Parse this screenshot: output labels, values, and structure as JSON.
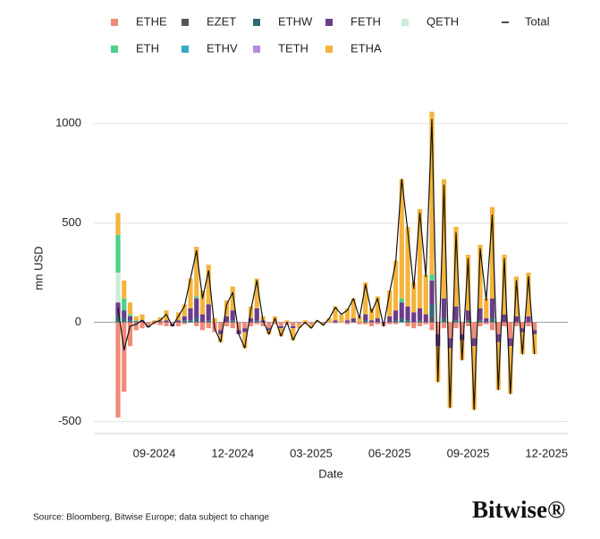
{
  "chart_data": {
    "type": "stacked_bar_line",
    "x_label": "Date",
    "y_label": "mn USD",
    "source": "Source: Bloomberg, Bitwise Europe; data subject to change",
    "logo": "Bitwise®",
    "categories": [
      null,
      null,
      null,
      null,
      null,
      null,
      "09-2024",
      null,
      null,
      null,
      null,
      null,
      null,
      null,
      null,
      null,
      null,
      null,
      null,
      "12-2024",
      null,
      null,
      null,
      null,
      null,
      null,
      null,
      null,
      null,
      null,
      null,
      null,
      "03-2025",
      null,
      null,
      null,
      null,
      null,
      null,
      null,
      null,
      null,
      null,
      null,
      null,
      "06-2025",
      null,
      null,
      null,
      null,
      null,
      null,
      null,
      null,
      null,
      null,
      null,
      null,
      "09-2025",
      null,
      null,
      null,
      null,
      null,
      null,
      null,
      null,
      null,
      null,
      null,
      null,
      "12-2025"
    ],
    "series": [
      {
        "name": "ETHE",
        "color": "#f08a78",
        "values": [
          -480,
          -350,
          -120,
          -40,
          -30,
          -20,
          -10,
          -15,
          -20,
          -10,
          -20,
          -10,
          0,
          -20,
          -40,
          -30,
          -50,
          -40,
          -20,
          -30,
          -40,
          -30,
          -20,
          -10,
          -20,
          -30,
          -10,
          -20,
          -10,
          -20,
          -10,
          -10,
          -10,
          0,
          -5,
          0,
          -5,
          0,
          -10,
          0,
          -10,
          -10,
          -20,
          -10,
          -20,
          -10,
          -10,
          0,
          -20,
          -30,
          -20,
          -10,
          -40,
          -60,
          -30,
          -80,
          -30,
          -60,
          -20,
          -80,
          -20,
          -10,
          -40,
          -60,
          -20,
          -80,
          -20,
          -30,
          -20,
          -40,
          null,
          null
        ]
      },
      {
        "name": "EZET",
        "color": "#555555",
        "values": [
          0,
          0,
          0,
          0,
          0,
          0,
          0,
          0,
          0,
          0,
          0,
          0,
          0,
          0,
          0,
          0,
          0,
          0,
          0,
          0,
          0,
          0,
          0,
          0,
          0,
          0,
          0,
          0,
          0,
          0,
          0,
          0,
          0,
          0,
          0,
          0,
          0,
          0,
          0,
          0,
          0,
          0,
          0,
          0,
          0,
          0,
          0,
          0,
          0,
          0,
          0,
          0,
          30,
          0,
          0,
          0,
          0,
          0,
          0,
          0,
          0,
          0,
          0,
          0,
          0,
          0,
          0,
          0,
          0,
          0,
          null,
          null
        ]
      },
      {
        "name": "ETHW",
        "color": "#2f6b73",
        "values": [
          30,
          20,
          10,
          0,
          0,
          0,
          0,
          0,
          0,
          0,
          0,
          10,
          10,
          20,
          0,
          10,
          0,
          0,
          0,
          10,
          0,
          0,
          0,
          10,
          0,
          0,
          0,
          0,
          0,
          0,
          0,
          0,
          0,
          0,
          0,
          0,
          0,
          0,
          0,
          0,
          0,
          10,
          0,
          0,
          0,
          0,
          10,
          20,
          10,
          0,
          10,
          0,
          60,
          0,
          20,
          0,
          10,
          0,
          10,
          0,
          10,
          0,
          20,
          0,
          0,
          0,
          0,
          0,
          0,
          0,
          null,
          null
        ]
      },
      {
        "name": "FETH",
        "color": "#6a3d8a",
        "values": [
          70,
          40,
          20,
          5,
          10,
          -5,
          0,
          5,
          10,
          -10,
          10,
          20,
          60,
          100,
          40,
          80,
          0,
          -20,
          30,
          50,
          -20,
          -20,
          20,
          60,
          10,
          -10,
          0,
          -10,
          0,
          -10,
          0,
          0,
          0,
          0,
          0,
          0,
          10,
          0,
          10,
          20,
          0,
          30,
          10,
          20,
          0,
          30,
          50,
          80,
          70,
          50,
          60,
          40,
          120,
          -60,
          100,
          -50,
          70,
          -30,
          50,
          -40,
          60,
          20,
          100,
          -40,
          40,
          -40,
          30,
          -20,
          30,
          -20,
          null,
          null
        ]
      },
      {
        "name": "QETH",
        "color": "#c9ecd6",
        "values": [
          150,
          0,
          0,
          0,
          0,
          0,
          0,
          0,
          0,
          0,
          0,
          0,
          0,
          0,
          0,
          0,
          0,
          0,
          0,
          0,
          0,
          0,
          0,
          0,
          0,
          0,
          0,
          0,
          0,
          0,
          0,
          0,
          0,
          0,
          0,
          0,
          0,
          0,
          0,
          0,
          0,
          0,
          0,
          0,
          0,
          0,
          0,
          0,
          0,
          0,
          0,
          0,
          0,
          0,
          0,
          0,
          0,
          0,
          0,
          0,
          0,
          0,
          0,
          0,
          0,
          0,
          0,
          0,
          0,
          0,
          null,
          null
        ]
      },
      {
        "name": "ETH",
        "color": "#4cd08a",
        "values": [
          190,
          60,
          10,
          5,
          0,
          0,
          0,
          0,
          0,
          0,
          0,
          0,
          0,
          10,
          0,
          0,
          0,
          0,
          0,
          0,
          0,
          0,
          0,
          0,
          0,
          0,
          0,
          0,
          0,
          0,
          0,
          0,
          0,
          0,
          0,
          0,
          0,
          0,
          0,
          0,
          0,
          0,
          0,
          0,
          0,
          0,
          0,
          20,
          0,
          0,
          0,
          0,
          30,
          0,
          0,
          0,
          0,
          0,
          0,
          0,
          0,
          0,
          0,
          0,
          0,
          0,
          0,
          0,
          0,
          0,
          null,
          null
        ]
      },
      {
        "name": "ETHV",
        "color": "#36a9c4",
        "values": [
          0,
          0,
          0,
          0,
          0,
          0,
          0,
          0,
          0,
          0,
          0,
          0,
          0,
          0,
          0,
          0,
          0,
          0,
          0,
          0,
          0,
          0,
          0,
          0,
          0,
          0,
          0,
          0,
          0,
          0,
          0,
          0,
          0,
          0,
          0,
          0,
          0,
          0,
          0,
          0,
          0,
          0,
          0,
          0,
          0,
          0,
          0,
          0,
          0,
          0,
          0,
          0,
          0,
          0,
          0,
          0,
          0,
          0,
          0,
          0,
          0,
          0,
          0,
          0,
          0,
          0,
          0,
          0,
          0,
          0,
          null,
          null
        ]
      },
      {
        "name": "TETH",
        "color": "#b48be0",
        "values": [
          0,
          0,
          0,
          0,
          0,
          0,
          0,
          0,
          0,
          0,
          0,
          0,
          0,
          0,
          0,
          0,
          0,
          0,
          0,
          0,
          0,
          0,
          0,
          0,
          0,
          0,
          0,
          0,
          0,
          0,
          0,
          0,
          0,
          0,
          0,
          0,
          0,
          0,
          0,
          0,
          0,
          0,
          0,
          0,
          0,
          0,
          0,
          0,
          0,
          0,
          0,
          0,
          0,
          0,
          0,
          0,
          0,
          0,
          0,
          0,
          0,
          0,
          0,
          0,
          0,
          0,
          0,
          0,
          0,
          0,
          null,
          null
        ]
      },
      {
        "name": "ETHA",
        "color": "#f4b43c",
        "values": [
          110,
          90,
          60,
          20,
          30,
          0,
          10,
          20,
          50,
          0,
          40,
          60,
          150,
          250,
          120,
          200,
          20,
          -40,
          80,
          120,
          0,
          -80,
          60,
          150,
          20,
          -20,
          30,
          -40,
          10,
          -60,
          -20,
          10,
          -20,
          10,
          -10,
          20,
          70,
          40,
          60,
          100,
          30,
          160,
          60,
          110,
          0,
          130,
          250,
          600,
          400,
          150,
          500,
          200,
          820,
          -180,
          600,
          -300,
          400,
          -100,
          280,
          -320,
          320,
          100,
          460,
          -240,
          300,
          -240,
          200,
          -110,
          220,
          -100,
          null,
          null
        ]
      }
    ],
    "total": {
      "name": "Total",
      "color": "#111111",
      "values": [
        70,
        -140,
        -20,
        -10,
        10,
        -25,
        0,
        10,
        40,
        -20,
        30,
        80,
        220,
        360,
        120,
        260,
        -30,
        -100,
        90,
        150,
        -60,
        -130,
        60,
        210,
        10,
        -60,
        20,
        -70,
        0,
        -90,
        -30,
        0,
        -30,
        10,
        -15,
        20,
        75,
        40,
        60,
        120,
        20,
        190,
        50,
        120,
        -20,
        150,
        300,
        720,
        460,
        170,
        550,
        230,
        1020,
        -300,
        690,
        -430,
        450,
        -190,
        320,
        -440,
        370,
        110,
        540,
        -340,
        320,
        -360,
        210,
        -160,
        230,
        -160,
        null,
        null
      ]
    },
    "ylim": [
      -560,
      1100
    ],
    "yticks": [
      -500,
      0,
      500,
      1000
    ],
    "grid": true
  }
}
